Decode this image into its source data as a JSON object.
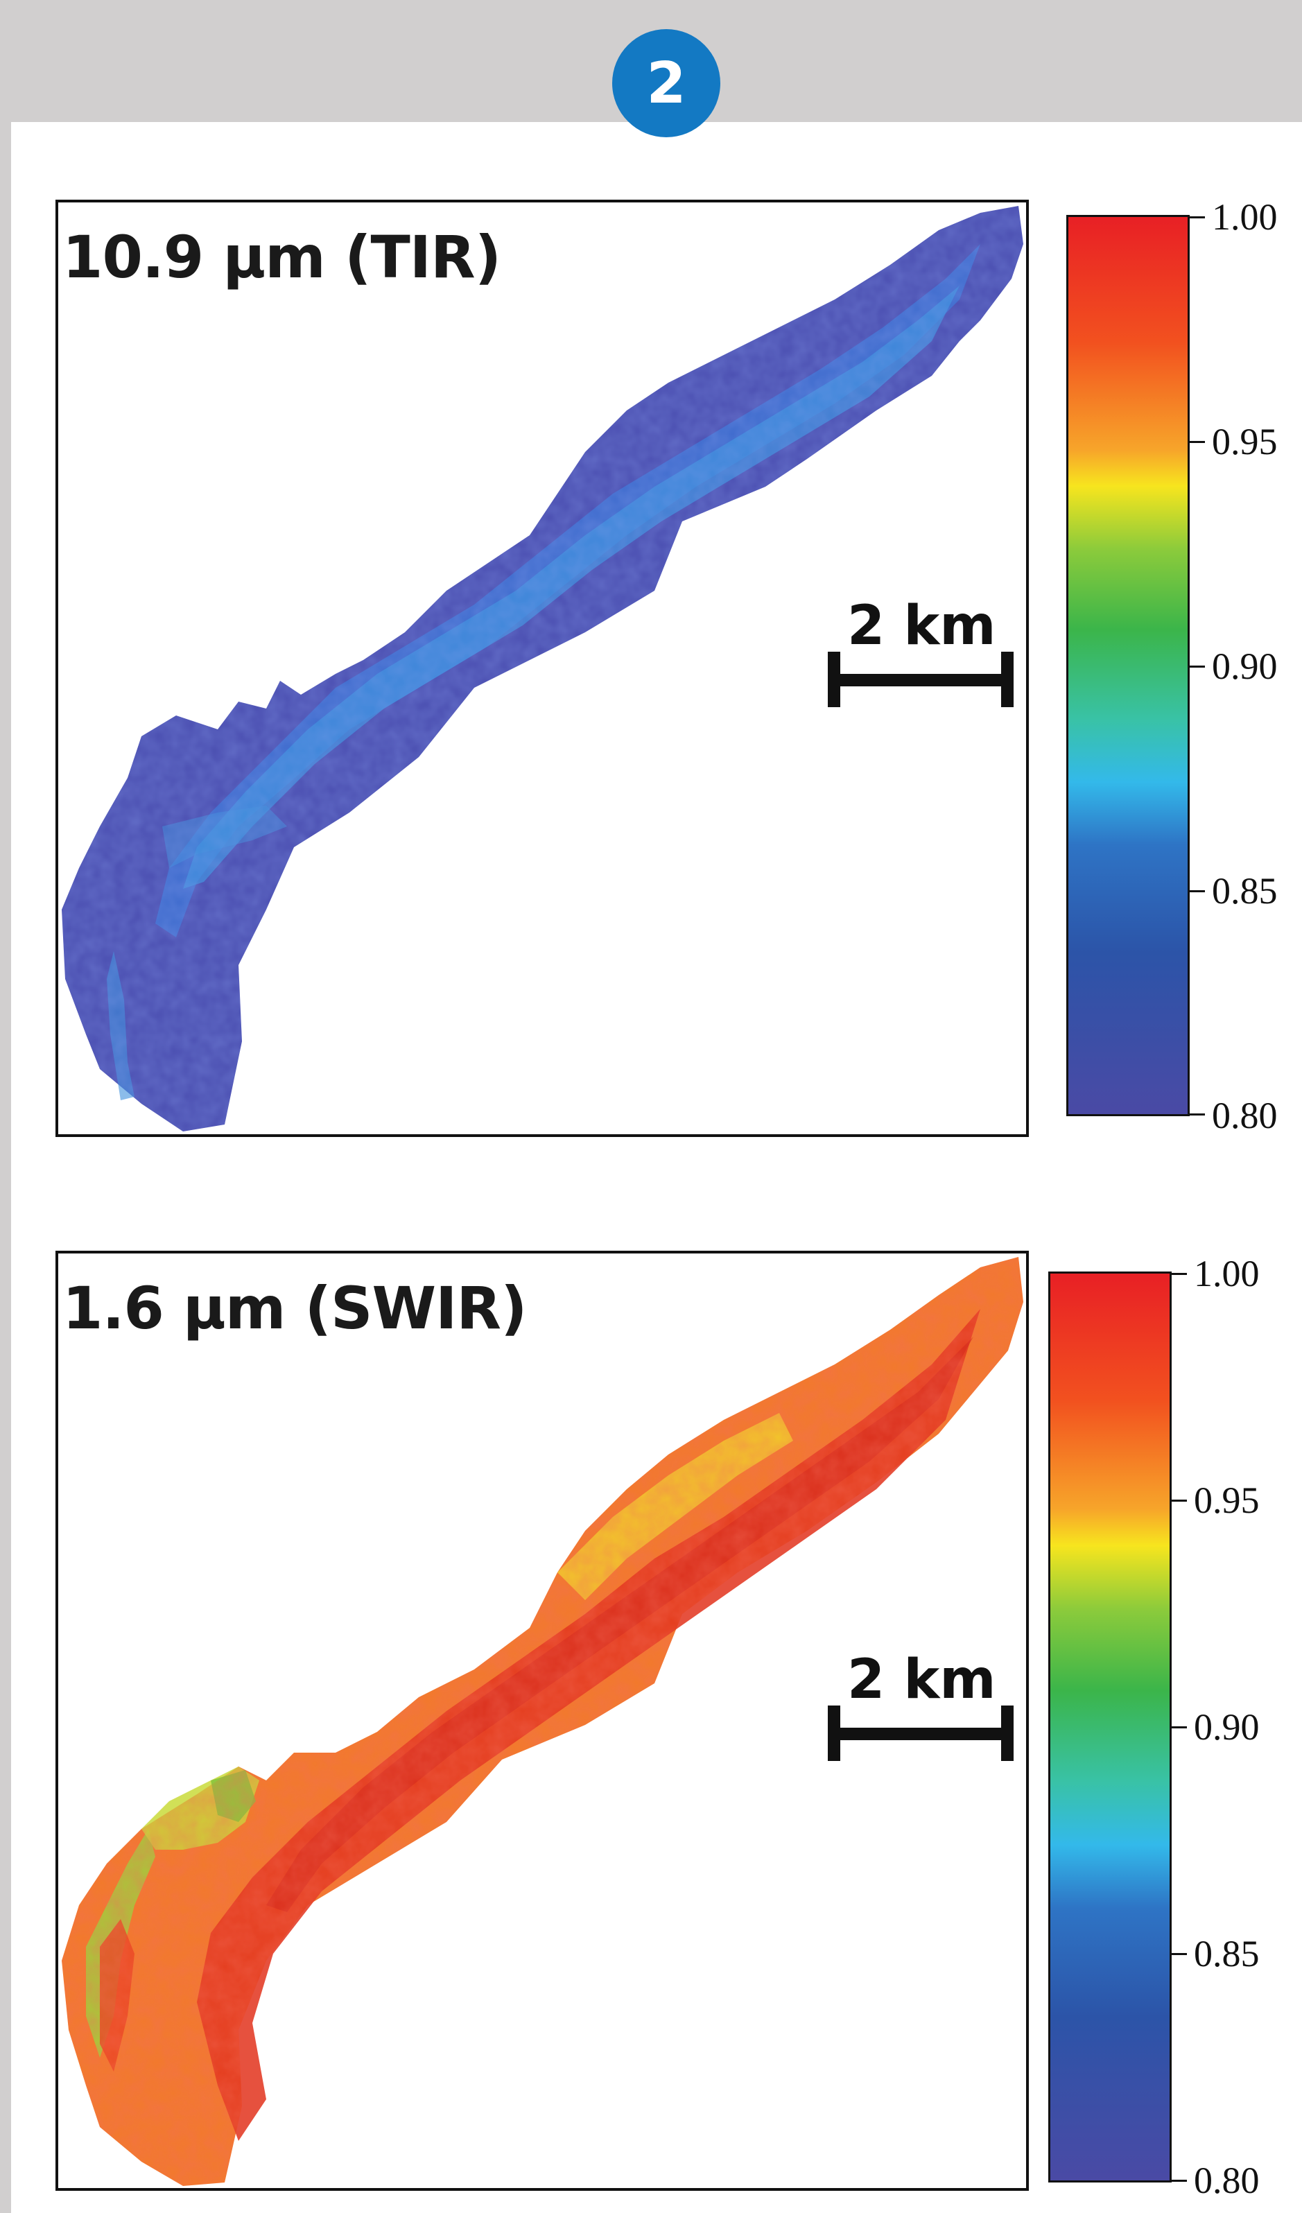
{
  "badge": "2",
  "panels": [
    {
      "label": "10.9 µm (TIR)",
      "scale_bar": "2 km",
      "colorbar": {
        "min": 0.8,
        "max": 1.0,
        "ticks": [
          "1.00",
          "0.95",
          "0.90",
          "0.85",
          "0.80"
        ]
      },
      "fill_color": "#4a4eb0",
      "channel_color": "#3d8fdc"
    },
    {
      "label": "1.6 µm (SWIR)",
      "scale_bar": "2 km",
      "colorbar": {
        "min": 0.8,
        "max": 1.0,
        "ticks": [
          "1.00",
          "0.95",
          "0.90",
          "0.85",
          "0.80"
        ]
      },
      "fill_color": "#f05a22",
      "channel_color": "#e0301c"
    }
  ]
}
